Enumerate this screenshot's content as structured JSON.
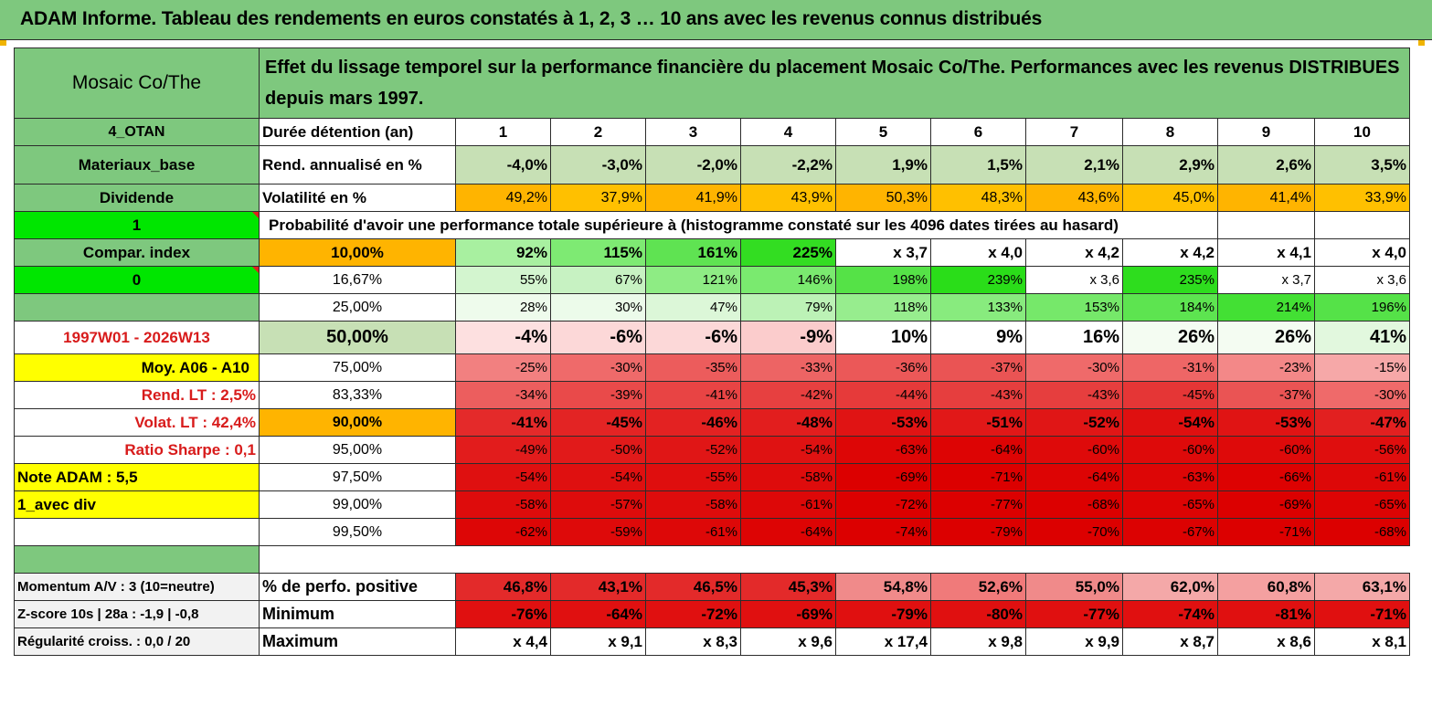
{
  "title": "ADAM Informe. Tableau des rendements en euros constatés à 1, 2, 3 … 10 ans avec les revenus connus distribués",
  "header": {
    "fund": "Mosaic Co/The",
    "description": "Effet du lissage temporel sur la performance financière du placement Mosaic Co/The. Performances avec les revenus DISTRIBUES depuis mars 1997."
  },
  "left_labels": {
    "code": "4_OTAN",
    "sector": "Materiaux_base",
    "type": "Dividende",
    "flag1": "1",
    "compar": "Compar. index",
    "flag0": "0",
    "period": "1997W01 - 2026W13",
    "moy": "Moy. A06 - A10",
    "rend_lt": "Rend. LT :   2,5%",
    "volat_lt": "Volat. LT :   42,4%",
    "sharpe": "Ratio Sharpe :    0,1",
    "note": "Note ADAM : 5,5",
    "avec_div": "1_avec div",
    "momentum": "Momentum A/V : 3 (10=neutre)",
    "zscore": "Z-score 10s | 28a : -1,9 | -0,8",
    "regularite": "Régularité croiss. : 0,0 / 20"
  },
  "rows": {
    "duree_label": "Durée détention (an)",
    "years": [
      "1",
      "2",
      "3",
      "4",
      "5",
      "6",
      "7",
      "8",
      "9",
      "10"
    ],
    "rend_label": "Rend. annualisé en %",
    "rend": [
      "-4,0%",
      "-3,0%",
      "-2,0%",
      "-2,2%",
      "1,9%",
      "1,5%",
      "2,1%",
      "2,9%",
      "2,6%",
      "3,5%"
    ],
    "vol_label": "Volatilité en %",
    "vol": [
      "49,2%",
      "37,9%",
      "41,9%",
      "43,9%",
      "50,3%",
      "48,3%",
      "43,6%",
      "45,0%",
      "41,4%",
      "33,9%"
    ],
    "proba_label": "Probabilité d'avoir une performance totale supérieure à (histogramme constaté sur les 4096 dates tirées au hasard)"
  },
  "quantiles": [
    {
      "label": "10,00%",
      "values": [
        "92%",
        "115%",
        "161%",
        "225%",
        "x 3,7",
        "x 4,0",
        "x 4,2",
        "x 4,2",
        "x 4,1",
        "x 4,0"
      ],
      "colors": [
        "#a8f0a0",
        "#7eea73",
        "#5fe352",
        "#33dd22",
        "#ffffff",
        "#ffffff",
        "#ffffff",
        "#ffffff",
        "#ffffff",
        "#ffffff"
      ]
    },
    {
      "label": "16,67%",
      "values": [
        "55%",
        "67%",
        "121%",
        "146%",
        "198%",
        "239%",
        "x 3,6",
        "235%",
        "x 3,7",
        "x 3,6"
      ],
      "colors": [
        "#d3f5cf",
        "#c7f2c2",
        "#8eec84",
        "#7aea6f",
        "#55e247",
        "#2add19",
        "#ffffff",
        "#2edd1e",
        "#ffffff",
        "#ffffff"
      ]
    },
    {
      "label": "25,00%",
      "values": [
        "28%",
        "30%",
        "47%",
        "79%",
        "118%",
        "133%",
        "153%",
        "184%",
        "214%",
        "196%"
      ],
      "colors": [
        "#eefbec",
        "#ecfbea",
        "#dcf7d8",
        "#bcf2b6",
        "#97ed8e",
        "#88eb7e",
        "#76e86a",
        "#5de450",
        "#43e034",
        "#55e248"
      ]
    },
    {
      "label": "50,00%",
      "values": [
        "-4%",
        "-6%",
        "-6%",
        "-9%",
        "10%",
        "9%",
        "16%",
        "26%",
        "26%",
        "41%"
      ],
      "colors": [
        "#fde0e0",
        "#fcd8d8",
        "#fcd8d8",
        "#fbcccc",
        "#ffffff",
        "#ffffff",
        "#ffffff",
        "#f4fcf2",
        "#f4fcf2",
        "#e2f8de"
      ]
    },
    {
      "label": "75,00%",
      "values": [
        "-25%",
        "-30%",
        "-35%",
        "-33%",
        "-36%",
        "-37%",
        "-30%",
        "-31%",
        "-23%",
        "-15%"
      ],
      "colors": [
        "#f28080",
        "#ef6a6a",
        "#ec5c5c",
        "#ed6464",
        "#eb5858",
        "#ea5454",
        "#ef6a6a",
        "#ee6666",
        "#f38888",
        "#f6a8a8"
      ]
    },
    {
      "label": "83,33%",
      "values": [
        "-34%",
        "-39%",
        "-41%",
        "-42%",
        "-44%",
        "-43%",
        "-43%",
        "-45%",
        "-37%",
        "-30%"
      ],
      "colors": [
        "#ec5e5e",
        "#e94a4a",
        "#e84444",
        "#e74040",
        "#e63a3a",
        "#e63e3e",
        "#e63e3e",
        "#e53636",
        "#ea5454",
        "#ef6a6a"
      ]
    },
    {
      "label": "90,00%",
      "values": [
        "-41%",
        "-45%",
        "-46%",
        "-48%",
        "-53%",
        "-51%",
        "-52%",
        "-54%",
        "-53%",
        "-47%"
      ],
      "colors": [
        "#e42a2a",
        "#e32424",
        "#e32222",
        "#e21e1e",
        "#e01414",
        "#e11818",
        "#e01616",
        "#df1010",
        "#e01414",
        "#e22020"
      ]
    },
    {
      "label": "95,00%",
      "values": [
        "-49%",
        "-50%",
        "-52%",
        "-54%",
        "-63%",
        "-64%",
        "-60%",
        "-60%",
        "-60%",
        "-56%"
      ],
      "colors": [
        "#e21c1c",
        "#e11a1a",
        "#e01616",
        "#df1212",
        "#dd0606",
        "#dd0404",
        "#de0a0a",
        "#de0a0a",
        "#de0a0a",
        "#df0e0e"
      ]
    },
    {
      "label": "97,50%",
      "values": [
        "-54%",
        "-54%",
        "-55%",
        "-58%",
        "-69%",
        "-71%",
        "-64%",
        "-63%",
        "-66%",
        "-61%"
      ],
      "colors": [
        "#df1010",
        "#df1010",
        "#df0e0e",
        "#de0c0c",
        "#dc0000",
        "#dc0000",
        "#dd0404",
        "#dd0606",
        "#dd0202",
        "#dd0808"
      ]
    },
    {
      "label": "99,00%",
      "values": [
        "-58%",
        "-57%",
        "-58%",
        "-61%",
        "-72%",
        "-77%",
        "-68%",
        "-65%",
        "-69%",
        "-65%"
      ],
      "colors": [
        "#de0c0c",
        "#de0c0c",
        "#de0c0c",
        "#dd0808",
        "#dc0000",
        "#dc0000",
        "#dc0000",
        "#dd0404",
        "#dc0000",
        "#dd0404"
      ]
    },
    {
      "label": "99,50%",
      "values": [
        "-62%",
        "-59%",
        "-61%",
        "-64%",
        "-74%",
        "-79%",
        "-70%",
        "-67%",
        "-71%",
        "-68%"
      ],
      "colors": [
        "#dd0606",
        "#de0a0a",
        "#dd0808",
        "#dd0404",
        "#dc0000",
        "#dc0000",
        "#dc0000",
        "#dc0202",
        "#dc0000",
        "#dc0000"
      ]
    }
  ],
  "bottom": {
    "positive_label": "% de perfo. positive",
    "positive": [
      "46,8%",
      "43,1%",
      "46,5%",
      "45,3%",
      "54,8%",
      "52,6%",
      "55,0%",
      "62,0%",
      "60,8%",
      "63,1%"
    ],
    "positive_colors": [
      "#e32a2a",
      "#e32a2a",
      "#e32a2a",
      "#e32a2a",
      "#f08a8a",
      "#f07a7a",
      "#f08a8a",
      "#f4a8a8",
      "#f4a0a0",
      "#f4a8a8"
    ],
    "min_label": "Minimum",
    "min": [
      "-76%",
      "-64%",
      "-72%",
      "-69%",
      "-79%",
      "-80%",
      "-77%",
      "-74%",
      "-81%",
      "-71%"
    ],
    "max_label": "Maximum",
    "max": [
      "x 4,4",
      "x 9,1",
      "x 8,3",
      "x 9,6",
      "x 17,4",
      "x 9,8",
      "x 9,9",
      "x 8,7",
      "x 8,6",
      "x 8,1"
    ]
  },
  "colors": {
    "green": "#7ec87e",
    "bright_green": "#00e600",
    "orange": "#ffb400",
    "yellow": "#ffff00",
    "red_text": "#d81b1b"
  }
}
